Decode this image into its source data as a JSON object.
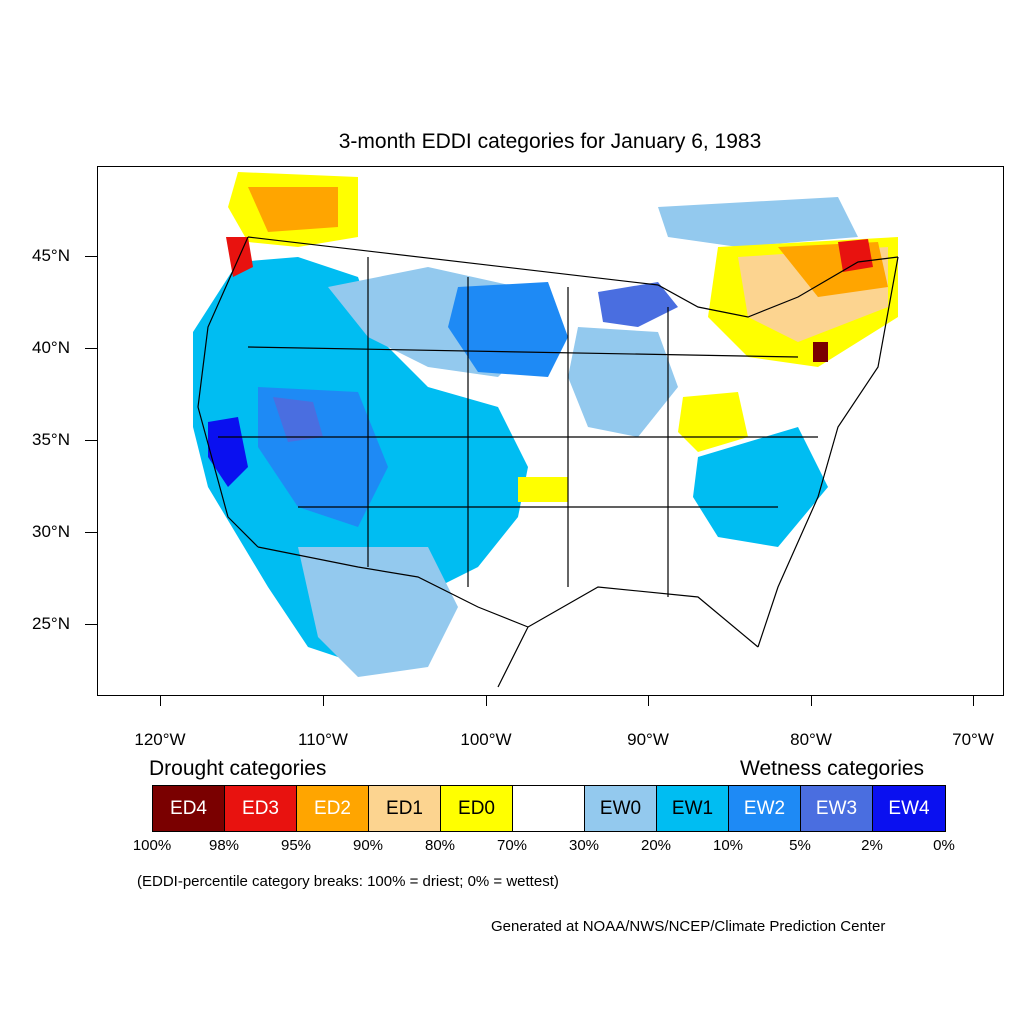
{
  "title": "3-month EDDI categories for January 6, 1983",
  "lat_labels": [
    "45°N",
    "40°N",
    "35°N",
    "30°N",
    "25°N"
  ],
  "lon_labels": [
    "120°W",
    "110°W",
    "100°W",
    "90°W",
    "80°W",
    "70°W"
  ],
  "legend": {
    "drought_heading": "Drought categories",
    "wetness_heading": "Wetness categories",
    "categories": [
      {
        "label": "ED4",
        "color": "#7a0000",
        "text_color": "#ffffff"
      },
      {
        "label": "ED3",
        "color": "#e8120f",
        "text_color": "#ffffff"
      },
      {
        "label": "ED2",
        "color": "#ffa500",
        "text_color": "#ffffff"
      },
      {
        "label": "ED1",
        "color": "#fcd490",
        "text_color": "#000000"
      },
      {
        "label": "ED0",
        "color": "#ffff00",
        "text_color": "#000000"
      },
      {
        "label": "",
        "color": "#ffffff",
        "text_color": "#000000"
      },
      {
        "label": "EW0",
        "color": "#93c9ee",
        "text_color": "#000000"
      },
      {
        "label": "EW1",
        "color": "#00bdf2",
        "text_color": "#000000"
      },
      {
        "label": "EW2",
        "color": "#1e8af5",
        "text_color": "#ffffff"
      },
      {
        "label": "EW3",
        "color": "#4a6ee0",
        "text_color": "#ffffff"
      },
      {
        "label": "EW4",
        "color": "#0a10f0",
        "text_color": "#ffffff"
      }
    ],
    "percent_breaks": [
      "100%",
      "98%",
      "95%",
      "90%",
      "80%",
      "70%",
      "30%",
      "20%",
      "10%",
      "5%",
      "2%",
      "0%"
    ]
  },
  "note": "(EDDI-percentile category breaks: 100% = driest; 0% = wettest)",
  "credit": "Generated at NOAA/NWS/NCEP/Climate Prediction Center"
}
